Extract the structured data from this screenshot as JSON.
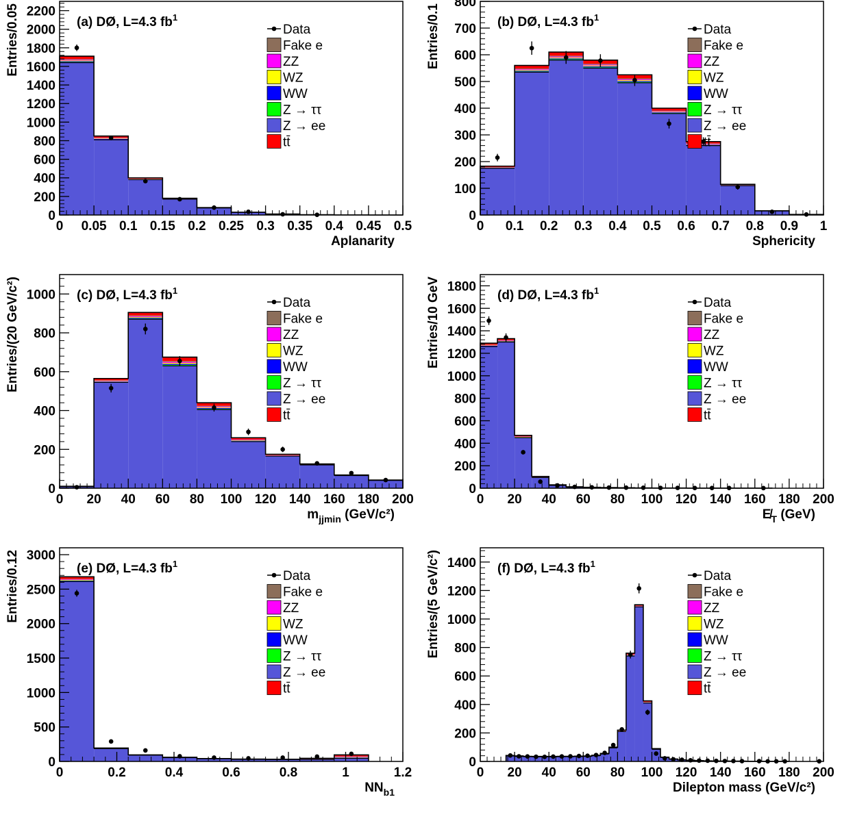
{
  "colors": {
    "Data": "#000000",
    "Fake e": "#8c6e5a",
    "ZZ": "#ff00ff",
    "WZ": "#ffff00",
    "WW": "#0000ff",
    "Z → ττ": "#00ff00",
    "Z → ee": "#5656d8",
    "tt̄": "#ff0000"
  },
  "legend": [
    "Data",
    "Fake e",
    "ZZ",
    "WZ",
    "WW",
    "Z → ττ",
    "Z → ee",
    "tt̄"
  ],
  "chart_data": [
    {
      "type": "bar",
      "title": "(a)  DØ, L=4.3 fb",
      "title_sup": "1",
      "xlabel": "Aplanarity",
      "xlabel_sub": "",
      "xlabel_tail": "",
      "ylabel": "Entries/0.05",
      "xlim": [
        0,
        0.5
      ],
      "ylim": [
        0,
        2300
      ],
      "xticks": [
        0,
        0.05,
        0.1,
        0.15,
        0.2,
        0.25,
        0.3,
        0.35,
        0.4,
        0.45,
        0.5
      ],
      "xticklabels": [
        "0",
        "0.05",
        "0.1",
        "0.15",
        "0.2",
        "0.25",
        "0.3",
        "0.35",
        "0.4",
        "0.45",
        "0.5"
      ],
      "yticks": [
        0,
        200,
        400,
        600,
        800,
        1000,
        1200,
        1400,
        1600,
        1800,
        2000,
        2200
      ],
      "bin_edges": [
        0,
        0.05,
        0.1,
        0.15,
        0.2,
        0.25,
        0.3,
        0.35,
        0.4,
        0.45,
        0.5
      ],
      "zee": [
        1640,
        810,
        380,
        170,
        75,
        28,
        10,
        3,
        1,
        0
      ],
      "total": [
        1710,
        850,
        400,
        180,
        80,
        30,
        11,
        3,
        1,
        0
      ],
      "data": [
        [
          0.025,
          1800,
          35
        ],
        [
          0.075,
          830,
          25
        ],
        [
          0.125,
          365,
          18
        ],
        [
          0.175,
          170,
          12
        ],
        [
          0.225,
          80,
          9
        ],
        [
          0.275,
          35,
          6
        ],
        [
          0.325,
          8,
          3
        ],
        [
          0.375,
          2,
          1.5
        ]
      ]
    },
    {
      "type": "bar",
      "title": "(b)  DØ, L=4.3 fb",
      "title_sup": "1",
      "xlabel": "Sphericity",
      "xlabel_sub": "",
      "xlabel_tail": "",
      "ylabel": "Entries/0.1",
      "xlim": [
        0,
        1
      ],
      "ylim": [
        0,
        800
      ],
      "xticks": [
        0,
        0.1,
        0.2,
        0.3,
        0.4,
        0.5,
        0.6,
        0.7,
        0.8,
        0.9,
        1
      ],
      "xticklabels": [
        "0",
        "0.1",
        "0.2",
        "0.3",
        "0.4",
        "0.5",
        "0.6",
        "0.7",
        "0.8",
        "0.9",
        "1"
      ],
      "yticks": [
        0,
        100,
        200,
        300,
        400,
        500,
        600,
        700,
        800
      ],
      "bin_edges": [
        0,
        0.1,
        0.2,
        0.3,
        0.4,
        0.5,
        0.6,
        0.7,
        0.8,
        0.9,
        1.0
      ],
      "zee": [
        175,
        535,
        580,
        550,
        495,
        380,
        260,
        110,
        15,
        2
      ],
      "total": [
        183,
        560,
        610,
        580,
        525,
        400,
        275,
        115,
        16,
        2
      ],
      "data": [
        [
          0.05,
          215,
          14
        ],
        [
          0.15,
          625,
          25
        ],
        [
          0.25,
          590,
          24
        ],
        [
          0.35,
          578,
          24
        ],
        [
          0.45,
          505,
          22
        ],
        [
          0.55,
          342,
          18
        ],
        [
          0.65,
          275,
          16
        ],
        [
          0.75,
          105,
          10
        ],
        [
          0.85,
          12,
          3.5
        ],
        [
          0.95,
          2,
          1.5
        ]
      ]
    },
    {
      "type": "bar",
      "title": "(c)  DØ, L=4.3 fb",
      "title_sup": "1",
      "xlabel": "m",
      "xlabel_sub": "jjmin",
      "xlabel_tail": " (GeV/c²)",
      "ylabel": "Entries/(20 GeV/c²)",
      "xlim": [
        0,
        200
      ],
      "ylim": [
        0,
        1100
      ],
      "xticks": [
        0,
        20,
        40,
        60,
        80,
        100,
        120,
        140,
        160,
        180,
        200
      ],
      "xticklabels": [
        "0",
        "20",
        "40",
        "60",
        "80",
        "100",
        "120",
        "140",
        "160",
        "180",
        "200"
      ],
      "yticks": [
        0,
        200,
        400,
        600,
        800,
        1000
      ],
      "bin_edges": [
        0,
        20,
        40,
        60,
        80,
        100,
        120,
        140,
        160,
        180,
        200
      ],
      "zee": [
        8,
        545,
        870,
        630,
        405,
        240,
        165,
        120,
        65,
        40
      ],
      "total": [
        10,
        565,
        905,
        675,
        440,
        260,
        175,
        125,
        68,
        42
      ],
      "data": [
        [
          10,
          5,
          2
        ],
        [
          30,
          515,
          22
        ],
        [
          50,
          820,
          28
        ],
        [
          70,
          655,
          25
        ],
        [
          90,
          415,
          20
        ],
        [
          110,
          290,
          17
        ],
        [
          130,
          200,
          14
        ],
        [
          150,
          128,
          11
        ],
        [
          170,
          78,
          9
        ],
        [
          190,
          42,
          6
        ]
      ]
    },
    {
      "type": "bar",
      "title": "(d)  DØ, L=4.3 fb",
      "title_sup": "1",
      "xlabel": "E̸",
      "xlabel_sub": "T",
      "xlabel_tail": " (GeV)",
      "ylabel": "Entries/10 GeV",
      "xlim": [
        0,
        200
      ],
      "ylim": [
        0,
        1900
      ],
      "xticks": [
        0,
        20,
        40,
        60,
        80,
        100,
        120,
        140,
        160,
        180,
        200
      ],
      "xticklabels": [
        "0",
        "20",
        "40",
        "60",
        "80",
        "100",
        "120",
        "140",
        "160",
        "180",
        "200"
      ],
      "yticks": [
        0,
        200,
        400,
        600,
        800,
        1000,
        1200,
        1400,
        1600,
        1800
      ],
      "bin_edges": [
        0,
        10,
        20,
        30,
        40,
        50,
        60,
        70,
        80,
        90,
        100,
        110,
        120,
        130,
        140,
        150,
        160,
        170
      ],
      "zee": [
        1260,
        1300,
        450,
        95,
        25,
        10,
        6,
        4,
        3,
        2,
        2,
        1,
        1,
        1,
        1,
        1,
        1
      ],
      "total": [
        1290,
        1330,
        470,
        105,
        30,
        13,
        8,
        6,
        4,
        3,
        2,
        2,
        1,
        1,
        1,
        1,
        1
      ],
      "data": [
        [
          5,
          1490,
          38
        ],
        [
          15,
          1340,
          37
        ],
        [
          25,
          320,
          18
        ],
        [
          35,
          58,
          8
        ],
        [
          45,
          25,
          5
        ],
        [
          55,
          12,
          3.5
        ],
        [
          65,
          8,
          3
        ],
        [
          75,
          6,
          2.5
        ],
        [
          85,
          5,
          2
        ],
        [
          95,
          4,
          2
        ],
        [
          105,
          3,
          1.7
        ],
        [
          115,
          3,
          1.7
        ],
        [
          125,
          2,
          1.4
        ],
        [
          135,
          2,
          1.4
        ],
        [
          145,
          2,
          1.4
        ],
        [
          165,
          1,
          1
        ]
      ]
    },
    {
      "type": "bar",
      "title": "(e)  DØ, L=4.3 fb",
      "title_sup": "1",
      "xlabel": "NN",
      "xlabel_sub": "b1",
      "xlabel_tail": "",
      "ylabel": "Entries/0.12",
      "xlim": [
        0,
        1.2
      ],
      "ylim": [
        0,
        3100
      ],
      "xticks": [
        0,
        0.2,
        0.4,
        0.6,
        0.8,
        1,
        1.2
      ],
      "xticklabels": [
        "0",
        "0.2",
        "0.4",
        "0.6",
        "0.8",
        "1",
        "1.2"
      ],
      "yticks": [
        0,
        500,
        1000,
        1500,
        2000,
        2500,
        3000
      ],
      "bin_edges": [
        0,
        0.12,
        0.24,
        0.36,
        0.48,
        0.6,
        0.72,
        0.84,
        0.96,
        1.08
      ],
      "zee": [
        2610,
        185,
        90,
        55,
        38,
        30,
        28,
        30,
        45
      ],
      "total": [
        2680,
        195,
        95,
        60,
        42,
        34,
        32,
        45,
        95
      ],
      "data": [
        [
          0.06,
          2440,
          50
        ],
        [
          0.18,
          290,
          17
        ],
        [
          0.3,
          160,
          13
        ],
        [
          0.42,
          75,
          9
        ],
        [
          0.54,
          55,
          7
        ],
        [
          0.66,
          45,
          7
        ],
        [
          0.78,
          55,
          7
        ],
        [
          0.9,
          70,
          8
        ],
        [
          1.02,
          110,
          10
        ]
      ]
    },
    {
      "type": "bar",
      "title": "(f)  DØ, L=4.3 fb",
      "title_sup": "1",
      "xlabel": "Dilepton mass (GeV/c²)",
      "xlabel_sub": "",
      "xlabel_tail": "",
      "ylabel": "Entries/(5 GeV/c²)",
      "xlim": [
        0,
        200
      ],
      "ylim": [
        0,
        1500
      ],
      "xticks": [
        0,
        20,
        40,
        60,
        80,
        100,
        120,
        140,
        160,
        180,
        200
      ],
      "xticklabels": [
        "0",
        "20",
        "40",
        "60",
        "80",
        "100",
        "120",
        "140",
        "160",
        "180",
        "200"
      ],
      "yticks": [
        0,
        200,
        400,
        600,
        800,
        1000,
        1200,
        1400
      ],
      "bin_edges": [
        15,
        20,
        25,
        30,
        35,
        40,
        45,
        50,
        55,
        60,
        65,
        70,
        75,
        80,
        85,
        90,
        95,
        100,
        105,
        110,
        115,
        120,
        125,
        130,
        135,
        140,
        145,
        150,
        155,
        160,
        165,
        170,
        175,
        180
      ],
      "zee": [
        38,
        35,
        33,
        32,
        32,
        32,
        33,
        33,
        34,
        35,
        40,
        52,
        95,
        210,
        740,
        1085,
        410,
        85,
        28,
        16,
        10,
        7,
        5,
        4,
        3,
        2,
        2,
        2,
        1,
        1,
        1,
        1,
        1
      ],
      "total": [
        42,
        39,
        36,
        35,
        35,
        35,
        36,
        36,
        37,
        38,
        43,
        56,
        100,
        220,
        760,
        1100,
        425,
        90,
        30,
        17,
        11,
        8,
        6,
        4,
        3,
        3,
        2,
        2,
        1,
        1,
        1,
        1,
        1
      ],
      "data": [
        [
          17.5,
          42,
          7
        ],
        [
          22.5,
          36,
          6
        ],
        [
          27.5,
          35,
          6
        ],
        [
          32.5,
          33,
          6
        ],
        [
          37.5,
          32,
          6
        ],
        [
          42.5,
          34,
          6
        ],
        [
          47.5,
          35,
          6
        ],
        [
          52.5,
          36,
          6
        ],
        [
          57.5,
          38,
          6
        ],
        [
          62.5,
          40,
          6
        ],
        [
          67.5,
          45,
          7
        ],
        [
          72.5,
          60,
          8
        ],
        [
          77.5,
          115,
          11
        ],
        [
          82.5,
          225,
          15
        ],
        [
          87.5,
          750,
          27
        ],
        [
          92.5,
          1215,
          35
        ],
        [
          97.5,
          345,
          19
        ],
        [
          102.5,
          55,
          7
        ],
        [
          107.5,
          22,
          5
        ],
        [
          112.5,
          15,
          4
        ],
        [
          117.5,
          12,
          3.5
        ],
        [
          122.5,
          8,
          3
        ],
        [
          127.5,
          6,
          2.5
        ],
        [
          132.5,
          5,
          2.2
        ],
        [
          137.5,
          4,
          2
        ],
        [
          142.5,
          3,
          1.7
        ],
        [
          147.5,
          3,
          1.7
        ],
        [
          152.5,
          2,
          1.4
        ],
        [
          162.5,
          2,
          1.4
        ],
        [
          167.5,
          1,
          1
        ],
        [
          172.5,
          1,
          1
        ],
        [
          177.5,
          1,
          1
        ],
        [
          197.5,
          1,
          1
        ]
      ]
    }
  ]
}
